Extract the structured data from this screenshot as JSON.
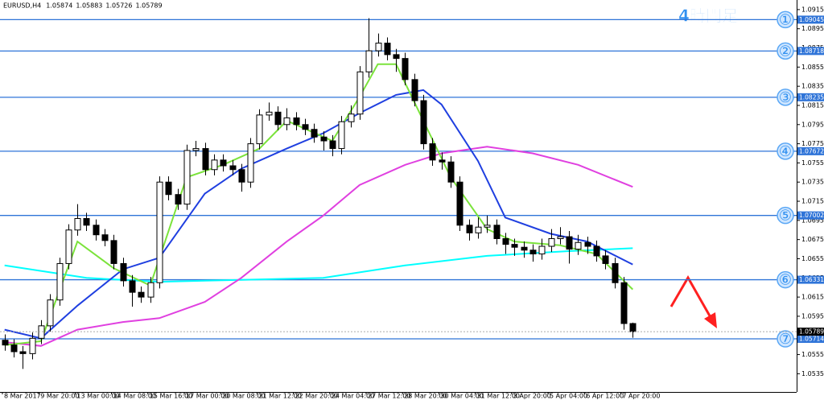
{
  "chart_data": {
    "type": "candlestick",
    "title": "4時間足",
    "symbol": "EURUSD,H4",
    "quote": [
      1.05874,
      1.05883,
      1.05726,
      1.05789
    ],
    "xlabels": [
      "8 Mar 2017",
      "9 Mar 20:00",
      "13 Mar 00:00",
      "14 Mar 08:00",
      "15 Mar 16:00",
      "17 Mar 00:00",
      "20 Mar 08:00",
      "21 Mar 12:00",
      "22 Mar 20:00",
      "24 Mar 04:00",
      "27 Mar 12:00",
      "28 Mar 20:00",
      "30 Mar 04:00",
      "31 Mar 12:00",
      "3 Apr 20:00",
      "5 Apr 04:00",
      "6 Apr 12:00",
      "7 Apr 20:00"
    ],
    "xlim": [
      -0.5,
      87
    ],
    "ylim": [
      1.0516,
      1.0925
    ],
    "yticks": [
      {
        "value": 1.0915,
        "label": "1.09150"
      },
      {
        "value": 1.0895,
        "label": "1.08950"
      },
      {
        "value": 1.0875,
        "label": "1.08750"
      },
      {
        "value": 1.0855,
        "label": "1.08550"
      },
      {
        "value": 1.0835,
        "label": "1.08350"
      },
      {
        "value": 1.0815,
        "label": "1.08150"
      },
      {
        "value": 1.0795,
        "label": "1.07950"
      },
      {
        "value": 1.0775,
        "label": "1.07750"
      },
      {
        "value": 1.0755,
        "label": "1.07550"
      },
      {
        "value": 1.0735,
        "label": "1.07350"
      },
      {
        "value": 1.0715,
        "label": "1.07150"
      },
      {
        "value": 1.0695,
        "label": "1.06950"
      },
      {
        "value": 1.0675,
        "label": "1.06750"
      },
      {
        "value": 1.0655,
        "label": "1.06550"
      },
      {
        "value": 1.0635,
        "label": "1.06350"
      },
      {
        "value": 1.0615,
        "label": "1.06150"
      },
      {
        "value": 1.0595,
        "label": "1.05950"
      },
      {
        "value": 1.0575,
        "label": "1.05750"
      },
      {
        "value": 1.0555,
        "label": "1.05550"
      },
      {
        "value": 1.0535,
        "label": "1.05350"
      }
    ],
    "candles": {
      "open": [
        1.057,
        1.0565,
        1.0558,
        1.0556,
        1.0572,
        1.0585,
        1.0612,
        1.065,
        1.0685,
        1.0697,
        1.069,
        1.068,
        1.0674,
        1.065,
        1.0632,
        1.062,
        1.0615,
        1.063,
        1.0735,
        1.0722,
        1.0712,
        1.0768,
        1.077,
        1.0748,
        1.0758,
        1.0752,
        1.0748,
        1.0735,
        1.0775,
        1.0805,
        1.0808,
        1.0795,
        1.0802,
        1.0795,
        1.079,
        1.0782,
        1.0778,
        1.077,
        1.0798,
        1.0806,
        1.085,
        1.0872,
        1.088,
        1.0868,
        1.0864,
        1.0842,
        1.082,
        1.0775,
        1.0758,
        1.0756,
        1.0735,
        1.069,
        1.0682,
        1.0688,
        1.069,
        1.0676,
        1.067,
        1.0667,
        1.0664,
        1.066,
        1.0668,
        1.0676,
        1.0678,
        1.0665,
        1.0672,
        1.0668,
        1.0658,
        1.065,
        1.063,
        1.05874
      ],
      "high": [
        1.0576,
        1.0571,
        1.0564,
        1.0578,
        1.0591,
        1.0618,
        1.0656,
        1.0691,
        1.0712,
        1.0703,
        1.0696,
        1.0686,
        1.068,
        1.0656,
        1.0638,
        1.0626,
        1.0636,
        1.0741,
        1.0741,
        1.0728,
        1.0774,
        1.0778,
        1.0776,
        1.0764,
        1.0764,
        1.0758,
        1.0754,
        1.0781,
        1.0811,
        1.0818,
        1.0814,
        1.0812,
        1.0808,
        1.0801,
        1.0796,
        1.0788,
        1.0784,
        1.0804,
        1.0815,
        1.0856,
        1.0906,
        1.089,
        1.0886,
        1.0874,
        1.087,
        1.0848,
        1.0826,
        1.0781,
        1.0766,
        1.0762,
        1.0741,
        1.0696,
        1.0698,
        1.07,
        1.0696,
        1.0682,
        1.0676,
        1.0673,
        1.067,
        1.0676,
        1.0686,
        1.0688,
        1.0684,
        1.068,
        1.0678,
        1.0674,
        1.0664,
        1.0656,
        1.0636,
        1.05883
      ],
      "low": [
        1.0559,
        1.0552,
        1.054,
        1.055,
        1.0566,
        1.0579,
        1.0606,
        1.0644,
        1.0679,
        1.0684,
        1.0674,
        1.0668,
        1.0644,
        1.0626,
        1.0605,
        1.0609,
        1.0609,
        1.0624,
        1.0716,
        1.0706,
        1.0706,
        1.0762,
        1.0742,
        1.0742,
        1.0746,
        1.0742,
        1.0725,
        1.0729,
        1.0769,
        1.0799,
        1.0789,
        1.0789,
        1.0789,
        1.0784,
        1.0776,
        1.0768,
        1.0762,
        1.0764,
        1.0792,
        1.08,
        1.0844,
        1.0866,
        1.0862,
        1.085,
        1.0836,
        1.0814,
        1.0769,
        1.0752,
        1.0748,
        1.0729,
        1.0684,
        1.0674,
        1.0676,
        1.0682,
        1.067,
        1.066,
        1.0658,
        1.0656,
        1.0652,
        1.0654,
        1.0662,
        1.067,
        1.065,
        1.0659,
        1.066,
        1.0652,
        1.0644,
        1.0624,
        1.0581,
        1.05726
      ],
      "close": [
        1.0565,
        1.0558,
        1.0556,
        1.0572,
        1.0585,
        1.0612,
        1.065,
        1.0685,
        1.0697,
        1.069,
        1.068,
        1.0674,
        1.065,
        1.0632,
        1.062,
        1.0615,
        1.063,
        1.0735,
        1.0722,
        1.0712,
        1.0768,
        1.077,
        1.0748,
        1.0758,
        1.0752,
        1.0748,
        1.0735,
        1.0775,
        1.0805,
        1.0808,
        1.0795,
        1.0802,
        1.0795,
        1.079,
        1.0782,
        1.0778,
        1.077,
        1.0798,
        1.0806,
        1.085,
        1.0872,
        1.088,
        1.0868,
        1.0864,
        1.0842,
        1.082,
        1.0775,
        1.0758,
        1.0756,
        1.0735,
        1.069,
        1.0682,
        1.0688,
        1.069,
        1.0676,
        1.067,
        1.0667,
        1.0664,
        1.066,
        1.0668,
        1.0676,
        1.0678,
        1.0665,
        1.0672,
        1.0668,
        1.0658,
        1.065,
        1.063,
        1.05874,
        1.05789
      ]
    },
    "series": [
      {
        "color": "#00ffff",
        "x": [
          0,
          9,
          17,
          26,
          35,
          44,
          53,
          62,
          69
        ],
        "values": [
          1.0648,
          1.0635,
          1.0631,
          1.0633,
          1.0635,
          1.0648,
          1.0658,
          1.0663,
          1.0666
        ]
      },
      {
        "color": "#e040e0",
        "x": [
          0,
          4,
          8,
          13,
          17,
          22,
          26,
          31,
          35,
          39,
          44,
          48,
          53,
          58,
          63,
          69
        ],
        "values": [
          1.0568,
          1.0564,
          1.0581,
          1.0589,
          1.0593,
          1.061,
          1.0635,
          1.0673,
          1.07,
          1.0732,
          1.0753,
          1.0765,
          1.0772,
          1.0765,
          1.0753,
          1.073
        ]
      },
      {
        "color": "#1f3fe0",
        "x": [
          0,
          4,
          8,
          13,
          17,
          22,
          26,
          31,
          35,
          39,
          43,
          46,
          48,
          52,
          55,
          60,
          64,
          69
        ],
        "values": [
          1.0581,
          1.0572,
          1.0606,
          1.0644,
          1.0656,
          1.0723,
          1.0749,
          1.077,
          1.0786,
          1.0807,
          1.0826,
          1.0831,
          1.0816,
          1.0757,
          1.0698,
          1.0681,
          1.0673,
          1.0649
        ]
      },
      {
        "color": "#7be33b",
        "x": [
          0,
          4,
          8,
          12,
          16,
          20,
          24,
          28,
          31,
          36,
          39,
          41,
          43,
          46,
          49,
          53,
          56,
          61,
          65,
          69
        ],
        "values": [
          1.0565,
          1.0569,
          1.0673,
          1.0645,
          1.0627,
          1.074,
          1.0753,
          1.077,
          1.0799,
          1.0778,
          1.0824,
          1.0858,
          1.0858,
          1.0799,
          1.074,
          1.0686,
          1.0673,
          1.0669,
          1.066,
          1.0623
        ]
      }
    ],
    "levels": {
      "values": [
        1.09045,
        1.08718,
        1.08235,
        1.07672,
        1.07002,
        1.06331,
        1.05714
      ],
      "labels": [
        "①",
        "②",
        "③",
        "④",
        "⑤",
        "⑥",
        "⑦"
      ],
      "color": "#2f74d8"
    },
    "grid": false
  }
}
